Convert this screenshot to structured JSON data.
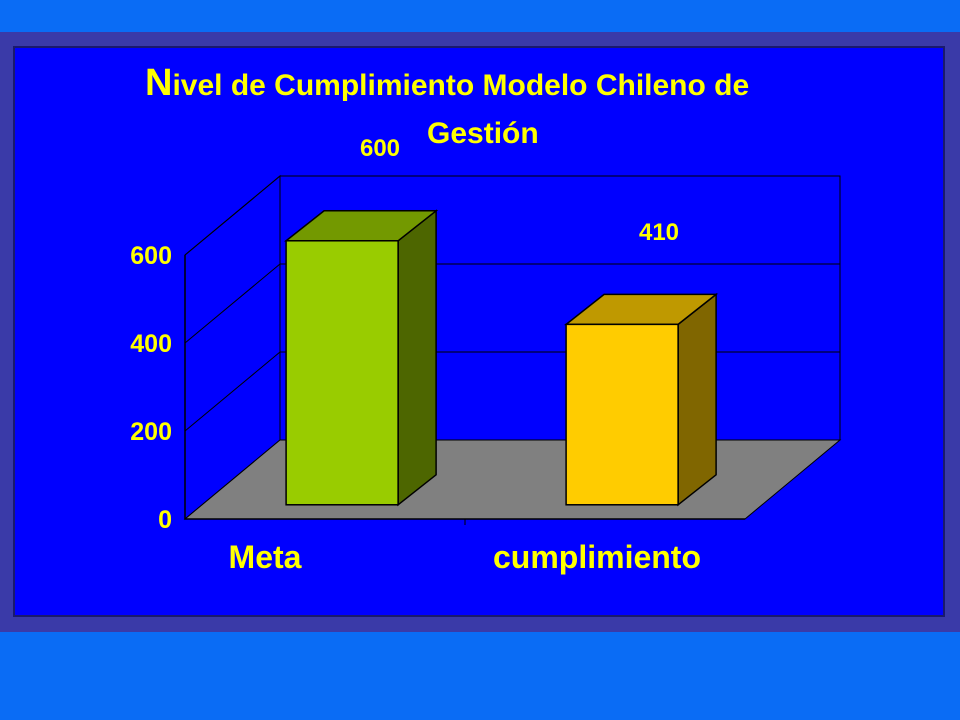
{
  "colors": {
    "background": "#0a6cf5",
    "frame": "#3a3aa8",
    "plot_area": "#0000ff",
    "text": "#ffff00",
    "floor": "#808080"
  },
  "chart_data": {
    "type": "bar",
    "title_first_letter": "N",
    "title_line1_rest": "ivel de Cumplimiento Modelo Chileno de",
    "title_line2": "Gestión",
    "categories": [
      "Meta",
      "cumplimiento"
    ],
    "values": [
      600,
      410
    ],
    "data_labels": [
      "600",
      "410"
    ],
    "ylim": [
      0,
      600
    ],
    "yticks": [
      "0",
      "200",
      "400",
      "600"
    ],
    "ytick_values": [
      0,
      200,
      400,
      600
    ],
    "grid": true,
    "style": "3d",
    "bar_colors": [
      {
        "front": "#99cc00",
        "top": "#739900",
        "side": "#4d6600"
      },
      {
        "front": "#ffcc00",
        "top": "#bf9900",
        "side": "#806600"
      }
    ]
  }
}
